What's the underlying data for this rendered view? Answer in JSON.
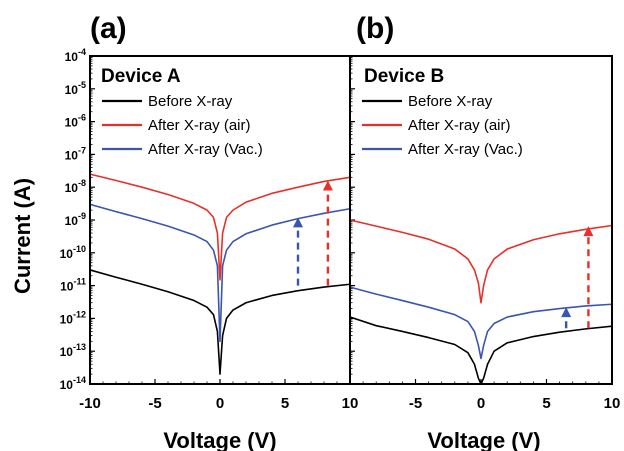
{
  "figure": {
    "ylabel": "Current (A)",
    "xlabel": "Voltage (V)"
  },
  "colors": {
    "before": "#000000",
    "air": "#e8302a",
    "vac": "#3a55b0"
  },
  "chart_data": [
    {
      "type": "line",
      "panel_label": "(a)",
      "title": "Device A",
      "xlabel": "Voltage (V)",
      "ylabel": "Current (A)",
      "xlim": [
        -10,
        10
      ],
      "ylim": [
        1e-14,
        0.0001
      ],
      "yscale": "log",
      "x_ticks": [
        "-10",
        "-5",
        "0",
        "5",
        "10"
      ],
      "y_ticks": [
        {
          "base": "10",
          "exp": "-4"
        },
        {
          "base": "10",
          "exp": "-5"
        },
        {
          "base": "10",
          "exp": "-6"
        },
        {
          "base": "10",
          "exp": "-7"
        },
        {
          "base": "10",
          "exp": "-8"
        },
        {
          "base": "10",
          "exp": "-9"
        },
        {
          "base": "10",
          "exp": "-10"
        },
        {
          "base": "10",
          "exp": "-11"
        },
        {
          "base": "10",
          "exp": "-12"
        },
        {
          "base": "10",
          "exp": "-13"
        },
        {
          "base": "10",
          "exp": "-14"
        }
      ],
      "legend": [
        "Before X-ray",
        "After X-ray (air)",
        "After X-ray (Vac.)"
      ],
      "legend_position": "top-left",
      "series": [
        {
          "name": "Before X-ray",
          "color": "#000000",
          "x": [
            -10,
            -8,
            -6,
            -4,
            -2,
            -1,
            -0.5,
            -0.2,
            0,
            0.2,
            0.5,
            1,
            2,
            4,
            6,
            8,
            10
          ],
          "y": [
            3e-11,
            1.8e-11,
            1.1e-11,
            6.5e-12,
            3.5e-12,
            2.2e-12,
            1.3e-12,
            4e-13,
            2e-14,
            3e-13,
            1e-12,
            1.8e-12,
            3e-12,
            5e-12,
            7e-12,
            9e-12,
            1.1e-11
          ]
        },
        {
          "name": "After X-ray (air)",
          "color": "#e8302a",
          "x": [
            -10,
            -8,
            -6,
            -4,
            -2,
            -1,
            -0.5,
            -0.2,
            0,
            0.2,
            0.5,
            1,
            2,
            4,
            6,
            8,
            10
          ],
          "y": [
            2.5e-08,
            1.6e-08,
            1e-08,
            6e-09,
            3.2e-09,
            2e-09,
            1.2e-09,
            4e-10,
            1.5e-11,
            4e-10,
            1.2e-09,
            2e-09,
            3.5e-09,
            6.5e-09,
            1e-08,
            1.5e-08,
            2e-08
          ]
        },
        {
          "name": "After X-ray (Vac.)",
          "color": "#3a55b0",
          "x": [
            -10,
            -8,
            -6,
            -4,
            -2,
            -1,
            -0.5,
            -0.2,
            0,
            0.2,
            0.5,
            1,
            2,
            4,
            6,
            8,
            10
          ],
          "y": [
            3e-09,
            1.8e-09,
            1.1e-09,
            6.5e-10,
            3.5e-10,
            2.2e-10,
            1.2e-10,
            4e-11,
            2e-13,
            4e-11,
            1.2e-10,
            2.2e-10,
            3.8e-10,
            7e-10,
            1.1e-09,
            1.6e-09,
            2.2e-09
          ]
        }
      ],
      "arrows": [
        {
          "color": "#3a55b0",
          "x": 6,
          "y_from": 1e-11,
          "y_to": 1.2e-09
        },
        {
          "color": "#e8302a",
          "x": 8.3,
          "y_from": 1e-11,
          "y_to": 1.6e-08
        }
      ]
    },
    {
      "type": "line",
      "panel_label": "(b)",
      "title": "Device B",
      "xlabel": "Voltage (V)",
      "ylabel": "",
      "xlim": [
        -10,
        10
      ],
      "ylim": [
        1e-14,
        0.0001
      ],
      "yscale": "log",
      "x_ticks": [
        "-5",
        "0",
        "5",
        "10"
      ],
      "legend": [
        "Before X-ray",
        "After X-ray (air)",
        "After X-ray (Vac.)"
      ],
      "legend_position": "top-left",
      "series": [
        {
          "name": "Before X-ray",
          "color": "#000000",
          "x": [
            -10,
            -8,
            -6,
            -4,
            -2,
            -1,
            -0.5,
            -0.2,
            0,
            0.2,
            0.5,
            1,
            2,
            4,
            6,
            8,
            10
          ],
          "y": [
            1.1e-12,
            6e-13,
            4e-13,
            2.6e-13,
            1.6e-13,
            9e-14,
            4e-14,
            1.5e-14,
            1e-14,
            1.5e-14,
            4e-14,
            1e-13,
            1.8e-13,
            2.8e-13,
            3.8e-13,
            4.8e-13,
            5.8e-13
          ]
        },
        {
          "name": "After X-ray (air)",
          "color": "#e8302a",
          "x": [
            -10,
            -8,
            -6,
            -4,
            -2,
            -1,
            -0.5,
            -0.2,
            0,
            0.2,
            0.5,
            1,
            2,
            4,
            6,
            8,
            10
          ],
          "y": [
            1e-09,
            6.5e-10,
            4.2e-10,
            2.6e-10,
            1.3e-10,
            6.5e-11,
            3e-11,
            1.2e-11,
            3e-12,
            1e-11,
            3e-11,
            6.5e-11,
            1.3e-10,
            2.5e-10,
            3.8e-10,
            5.2e-10,
            6.8e-10
          ]
        },
        {
          "name": "After X-ray (Vac.)",
          "color": "#3a55b0",
          "x": [
            -10,
            -8,
            -6,
            -4,
            -2,
            -1,
            -0.5,
            -0.2,
            0,
            0.2,
            0.5,
            1,
            2,
            4,
            6,
            8,
            10
          ],
          "y": [
            9e-12,
            5.5e-12,
            3.5e-12,
            2.2e-12,
            1.3e-12,
            8e-13,
            4e-13,
            1.5e-13,
            6e-14,
            1.5e-13,
            4e-13,
            7e-13,
            1.1e-12,
            1.6e-12,
            2e-12,
            2.4e-12,
            2.7e-12
          ]
        }
      ],
      "arrows": [
        {
          "color": "#3a55b0",
          "x": 6.5,
          "y_from": 5e-13,
          "y_to": 2.2e-12
        },
        {
          "color": "#e8302a",
          "x": 8.2,
          "y_from": 5e-13,
          "y_to": 6.5e-10
        }
      ]
    }
  ]
}
